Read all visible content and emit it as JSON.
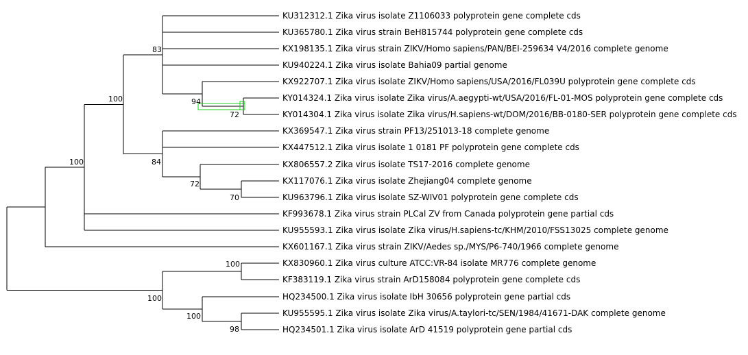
{
  "tree": {
    "type": "phylogenetic-tree",
    "leaves": [
      "KU312312.1 Zika virus isolate Z1106033 polyprotein gene complete cds",
      "KU365780.1 Zika virus strain BeH815744 polyprotein gene complete cds",
      "KX198135.1 Zika virus strain ZIKV/Homo sapiens/PAN/BEI-259634 V4/2016 complete genome",
      "KU940224.1 Zika virus isolate Bahia09 partial genome",
      "KX922707.1 Zika virus isolate ZIKV/Homo sapiens/USA/2016/FL039U polyprotein gene complete cds",
      "KY014324.1 Zika virus isolate Zika virus/A.aegypti-wt/USA/2016/FL-01-MOS polyprotein gene complete cds",
      "KY014304.1 Zika virus isolate Zika virus/H.sapiens-wt/DOM/2016/BB-0180-SER polyprotein gene complete cds",
      "KX369547.1 Zika virus strain PF13/251013-18 complete genome",
      "KX447512.1 Zika virus isolate 1 0181 PF polyprotein gene complete cds",
      "KX806557.2 Zika virus isolate TS17-2016 complete genome",
      "KX117076.1 Zika virus isolate Zhejiang04 complete genome",
      "KU963796.1 Zika virus isolate SZ-WIV01 polyprotein gene complete cds",
      "KF993678.1 Zika virus strain PLCal ZV from Canada polyprotein gene partial cds",
      "KU955593.1 Zika virus isolate Zika virus/H.sapiens-tc/KHM/2010/FSS13025 complete genome",
      "KX601167.1 Zika virus strain ZIKV/Aedes sp./MYS/P6-740/1966 complete genome",
      "KX830960.1 Zika virus culture ATCC:VR-84 isolate MR776 complete genome",
      "KF383119.1 Zika virus strain ArD158084 polyprotein gene complete cds",
      "HQ234500.1 Zika virus isolate IbH 30656 polyprotein gene partial cds",
      "KU955595.1 Zika virus isolate Zika virus/A.taylori-tc/SEN/1984/41671-DAK complete genome",
      "HQ234501.1 Zika virus isolate ArD 41519 polyprotein gene partial cds"
    ],
    "support_values": [
      "83",
      "94",
      "72",
      "100",
      "84",
      "72",
      "70",
      "100",
      "100",
      "100",
      "100",
      "98"
    ],
    "selection_color": "#22cc22"
  }
}
